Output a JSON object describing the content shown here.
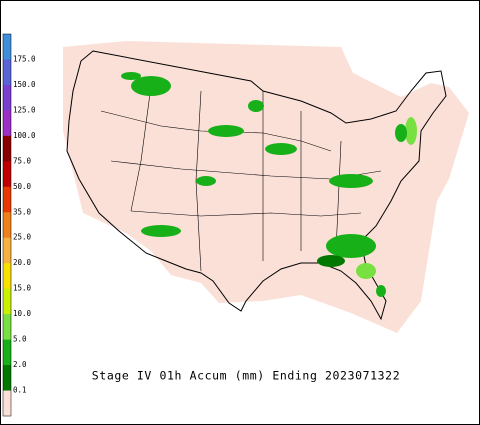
{
  "title": "Stage IV 01h Accum (mm) Ending 2023071322",
  "legend": {
    "labels": [
      "175.0",
      "150.0",
      "125.0",
      "100.0",
      "75.0",
      "50.0",
      "35.0",
      "25.0",
      "20.0",
      "15.0",
      "10.0",
      "5.0",
      "2.0",
      "0.1"
    ],
    "colors": [
      "#3f8fdc",
      "#5a63d8",
      "#7a3fd0",
      "#9c2fc8",
      "#8a0000",
      "#c00000",
      "#e83a00",
      "#f0801a",
      "#f8b040",
      "#f8e000",
      "#c8f000",
      "#78e040",
      "#18b018",
      "#007800",
      "#fbe0d8"
    ]
  }
}
